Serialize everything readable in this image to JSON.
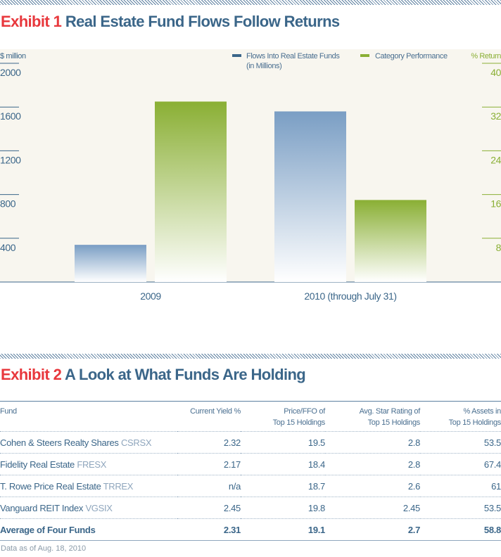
{
  "exhibit1": {
    "label": "Exhibit 1",
    "title": "Real Estate Fund Flows Follow Returns"
  },
  "exhibit2": {
    "label": "Exhibit 2",
    "title": "A Look at What Funds Are Holding"
  },
  "chart_data": {
    "type": "bar",
    "categories": [
      "2009",
      "2010 (through July 31)"
    ],
    "series": [
      {
        "name": "Flows Into Real Estate Funds (in Millions)",
        "axis": "left",
        "values": [
          340,
          1560
        ],
        "color": "#7a9ec4"
      },
      {
        "name": "Category Performance",
        "axis": "right",
        "values": [
          33,
          15
        ],
        "color": "#8aaf34"
      }
    ],
    "ylabel_left": "$ million",
    "ylabel_right": "% Return",
    "ylim_left": [
      0,
      2000
    ],
    "yticks_left": [
      400,
      800,
      1200,
      1600,
      2000
    ],
    "ylim_right": [
      0,
      40
    ],
    "yticks_right": [
      8,
      16,
      24,
      32,
      40
    ],
    "legend_lines": [
      [
        "Flows Into Real Estate Funds",
        "(in Millions)"
      ],
      [
        "Category Performance"
      ]
    ],
    "legend_placement": "top-right",
    "background": "#f8f6ef",
    "grid": false
  },
  "table": {
    "headers": [
      [
        "Fund"
      ],
      [
        "Current Yield %"
      ],
      [
        "Price/FFO of",
        "Top 15 Holdings"
      ],
      [
        "Avg. Star Rating of",
        "Top 15 Holdings"
      ],
      [
        "% Assets in",
        "Top 15 Holdings"
      ]
    ],
    "rows": [
      {
        "name": "Cohen & Steers Realty Shares",
        "ticker": "CSRSX",
        "values": [
          "2.32",
          "19.5",
          "2.8",
          "53.5"
        ]
      },
      {
        "name": "Fidelity Real Estate",
        "ticker": "FRESX",
        "values": [
          "2.17",
          "18.4",
          "2.8",
          "67.4"
        ]
      },
      {
        "name": "T. Rowe Price Real Estate",
        "ticker": "TRREX",
        "values": [
          "n/a",
          "18.7",
          "2.6",
          "61"
        ]
      },
      {
        "name": "Vanguard REIT Index",
        "ticker": "VGSIX",
        "values": [
          "2.45",
          "19.8",
          "2.45",
          "53.5"
        ]
      }
    ],
    "average": {
      "name": "Average of Four Funds",
      "values": [
        "2.31",
        "19.1",
        "2.7",
        "58.8"
      ]
    }
  },
  "note": "Data as of Aug. 18, 2010"
}
